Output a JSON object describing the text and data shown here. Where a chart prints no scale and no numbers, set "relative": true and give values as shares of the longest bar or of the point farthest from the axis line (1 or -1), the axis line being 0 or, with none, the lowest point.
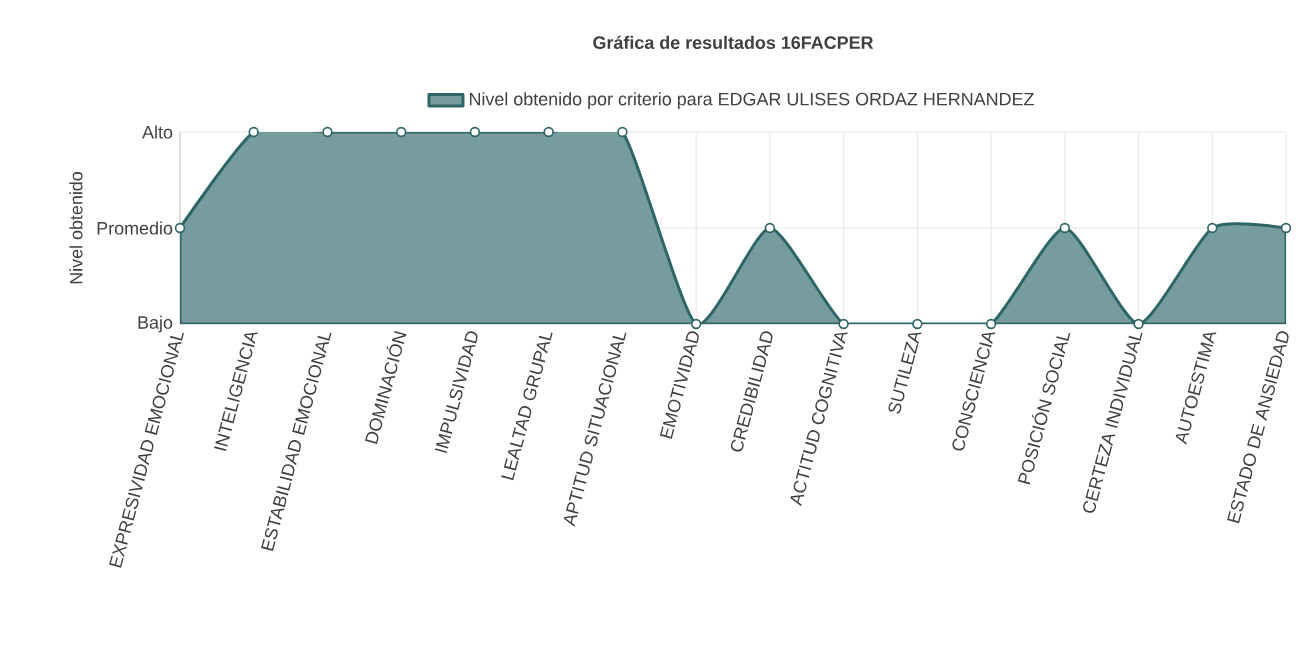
{
  "chart_data": {
    "type": "area",
    "title": "Gráfica de resultados 16FACPER",
    "ylabel": "Nivel obtenido",
    "categories": [
      "EXPRESIVIDAD EMOCIONAL",
      "INTELIGENCIA",
      "ESTABILIDAD EMOCIONAL",
      "DOMINACIÓN",
      "IMPULSIVIDAD",
      "LEALTAD GRUPAL",
      "APTITUD SITUACIONAL",
      "EMOTIVIDAD",
      "CREDIBILIDAD",
      "ACTITUD COGNITIVA",
      "SUTILEZA",
      "CONSCIENCIA",
      "POSICIÓN SOCIAL",
      "CERTEZA INDIVIDUAL",
      "AUTOESTIMA",
      "ESTADO DE ANSIEDAD"
    ],
    "series": [
      {
        "name": "Nivel obtenido por criterio para EDGAR ULISES ORDAZ HERNANDEZ",
        "color": "#2e6668",
        "values": [
          0.5,
          1,
          1,
          1,
          1,
          1,
          1,
          0,
          0.5,
          0,
          0,
          0,
          0.5,
          0,
          0.5,
          0.5
        ]
      }
    ],
    "relative": true,
    "annotations": [
      "Bajo",
      "Promedio",
      "Alto"
    ],
    "grid": true,
    "legend": "top",
    "marker": "circle",
    "line_style": "solid"
  }
}
